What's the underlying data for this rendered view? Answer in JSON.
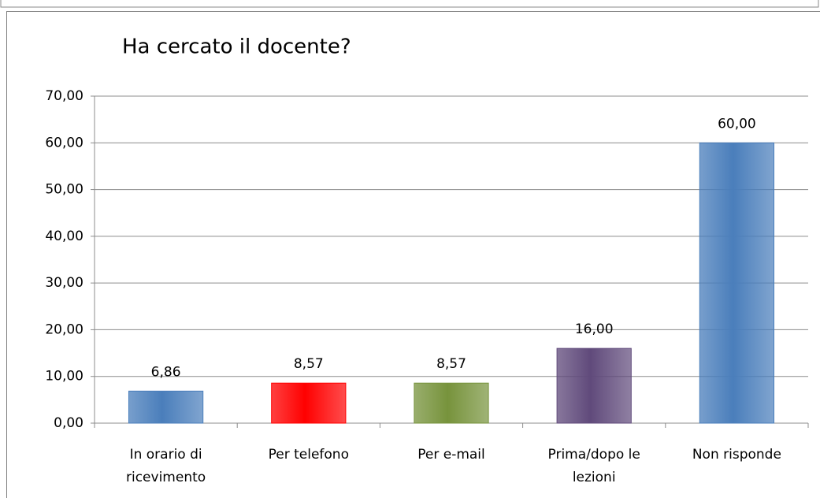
{
  "chart_data": {
    "type": "bar",
    "title": "Ha cercato il docente?",
    "categories": [
      "In orario di ricevimento",
      "Per telefono",
      "Per e-mail",
      "Prima/dopo le lezioni",
      "Non risponde"
    ],
    "values": [
      6.86,
      8.57,
      8.57,
      16,
      60
    ],
    "value_labels": [
      "6,86",
      "8,57",
      "8,57",
      "16,00",
      "60,00"
    ],
    "colors": [
      "#4a7ebb",
      "#ff0000",
      "#77933c",
      "#604a7b",
      "#4a7ebb"
    ],
    "ylim": [
      0,
      70
    ],
    "yticks": [
      {
        "value": 0,
        "label": "0,00"
      },
      {
        "value": 10,
        "label": "10,00"
      },
      {
        "value": 20,
        "label": "20,00"
      },
      {
        "value": 30,
        "label": "30,00"
      },
      {
        "value": 40,
        "label": "40,00"
      },
      {
        "value": 50,
        "label": "50,00"
      },
      {
        "value": 60,
        "label": "60,00"
      },
      {
        "value": 70,
        "label": "70,00"
      }
    ],
    "grid": true
  }
}
